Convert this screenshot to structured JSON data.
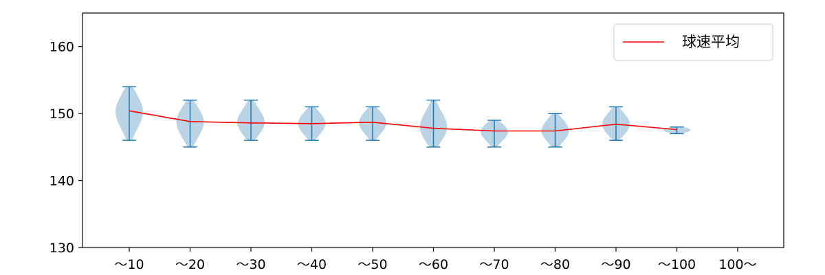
{
  "chart_data": {
    "type": "violin",
    "title": "",
    "xlabel": "",
    "ylabel": "",
    "ylim": [
      130,
      165
    ],
    "yticks": [
      130,
      140,
      150,
      160
    ],
    "categories": [
      "～10",
      "～20",
      "～30",
      "～40",
      "～50",
      "～60",
      "～70",
      "～80",
      "～90",
      "～100",
      "100～"
    ],
    "violins": [
      {
        "min": 146,
        "max": 154,
        "mean": 150.4
      },
      {
        "min": 145,
        "max": 152,
        "mean": 148.8
      },
      {
        "min": 146,
        "max": 152,
        "mean": 148.6
      },
      {
        "min": 146,
        "max": 151,
        "mean": 148.5
      },
      {
        "min": 146,
        "max": 151,
        "mean": 148.7
      },
      {
        "min": 145,
        "max": 152,
        "mean": 147.8
      },
      {
        "min": 145,
        "max": 149,
        "mean": 147.4
      },
      {
        "min": 145,
        "max": 150,
        "mean": 147.4
      },
      {
        "min": 146,
        "max": 151,
        "mean": 148.4
      },
      {
        "min": 147,
        "max": 148,
        "mean": 147.6
      },
      null
    ],
    "series": [
      {
        "name": "球速平均",
        "values": [
          150.4,
          148.8,
          148.6,
          148.5,
          148.7,
          147.8,
          147.4,
          147.4,
          148.4,
          147.6,
          null
        ]
      }
    ],
    "legend_position": "top-right",
    "grid": false,
    "colors": {
      "violin_fill": "#a9c8df",
      "violin_lines": "#1f77b4",
      "mean_line": "#ff0000",
      "axes": "#000000"
    }
  }
}
